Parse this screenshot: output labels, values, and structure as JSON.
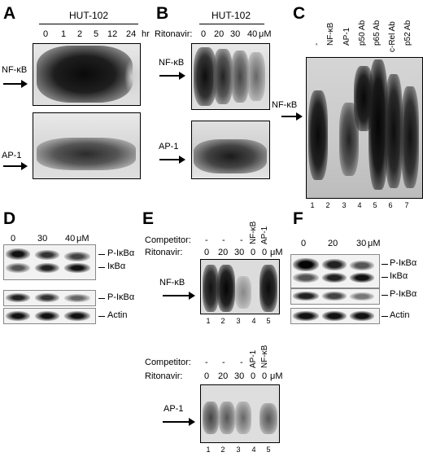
{
  "panelA": {
    "letter": "A",
    "cell_line": "HUT-102",
    "time_points": [
      "0",
      "1",
      "2",
      "5",
      "12",
      "24"
    ],
    "unit": "hr",
    "nfkb_label": "NF-κB",
    "ap1_label": "AP-1"
  },
  "panelB": {
    "letter": "B",
    "cell_line": "HUT-102",
    "ritonavir_label": "Ritonavir:",
    "doses": [
      "0",
      "20",
      "30",
      "40"
    ],
    "unit": "μM",
    "nfkb_label": "NF-κB",
    "ap1_label": "AP-1"
  },
  "panelC": {
    "letter": "C",
    "lane_headers": [
      "-",
      "NF-κB",
      "AP-1",
      "p50 Ab",
      "p65 Ab",
      "c-Rel Ab",
      "p52 Ab"
    ],
    "nfkb_label": "NF-κB",
    "lane_numbers": [
      "1",
      "2",
      "3",
      "4",
      "5",
      "6",
      "7"
    ]
  },
  "panelD": {
    "letter": "D",
    "doses": [
      "0",
      "30",
      "40"
    ],
    "unit": "μM",
    "labels": [
      "P-IκBα",
      "IκBα",
      "P-IκBα",
      "Actin"
    ]
  },
  "panelE": {
    "letter": "E",
    "competitor_label": "Competitor:",
    "ritonavir_label": "Ritonavir:",
    "top": {
      "competitors": [
        "-",
        "-",
        "-",
        "NF-κB",
        "AP-1"
      ],
      "doses": [
        "0",
        "20",
        "30",
        "0",
        "0"
      ],
      "unit": "μM",
      "band_label": "NF-κB",
      "lane_numbers": [
        "1",
        "2",
        "3",
        "4",
        "5"
      ]
    },
    "bottom": {
      "competitors": [
        "-",
        "-",
        "-",
        "AP-1",
        "NF-κB"
      ],
      "doses": [
        "0",
        "20",
        "30",
        "0",
        "0"
      ],
      "unit": "μM",
      "band_label": "AP-1",
      "lane_numbers": [
        "1",
        "2",
        "3",
        "4",
        "5"
      ]
    }
  },
  "panelF": {
    "letter": "F",
    "doses": [
      "0",
      "20",
      "30"
    ],
    "unit": "μM",
    "labels": [
      "P-IκBα",
      "IκBα",
      "P-IκBα",
      "Actin"
    ]
  }
}
